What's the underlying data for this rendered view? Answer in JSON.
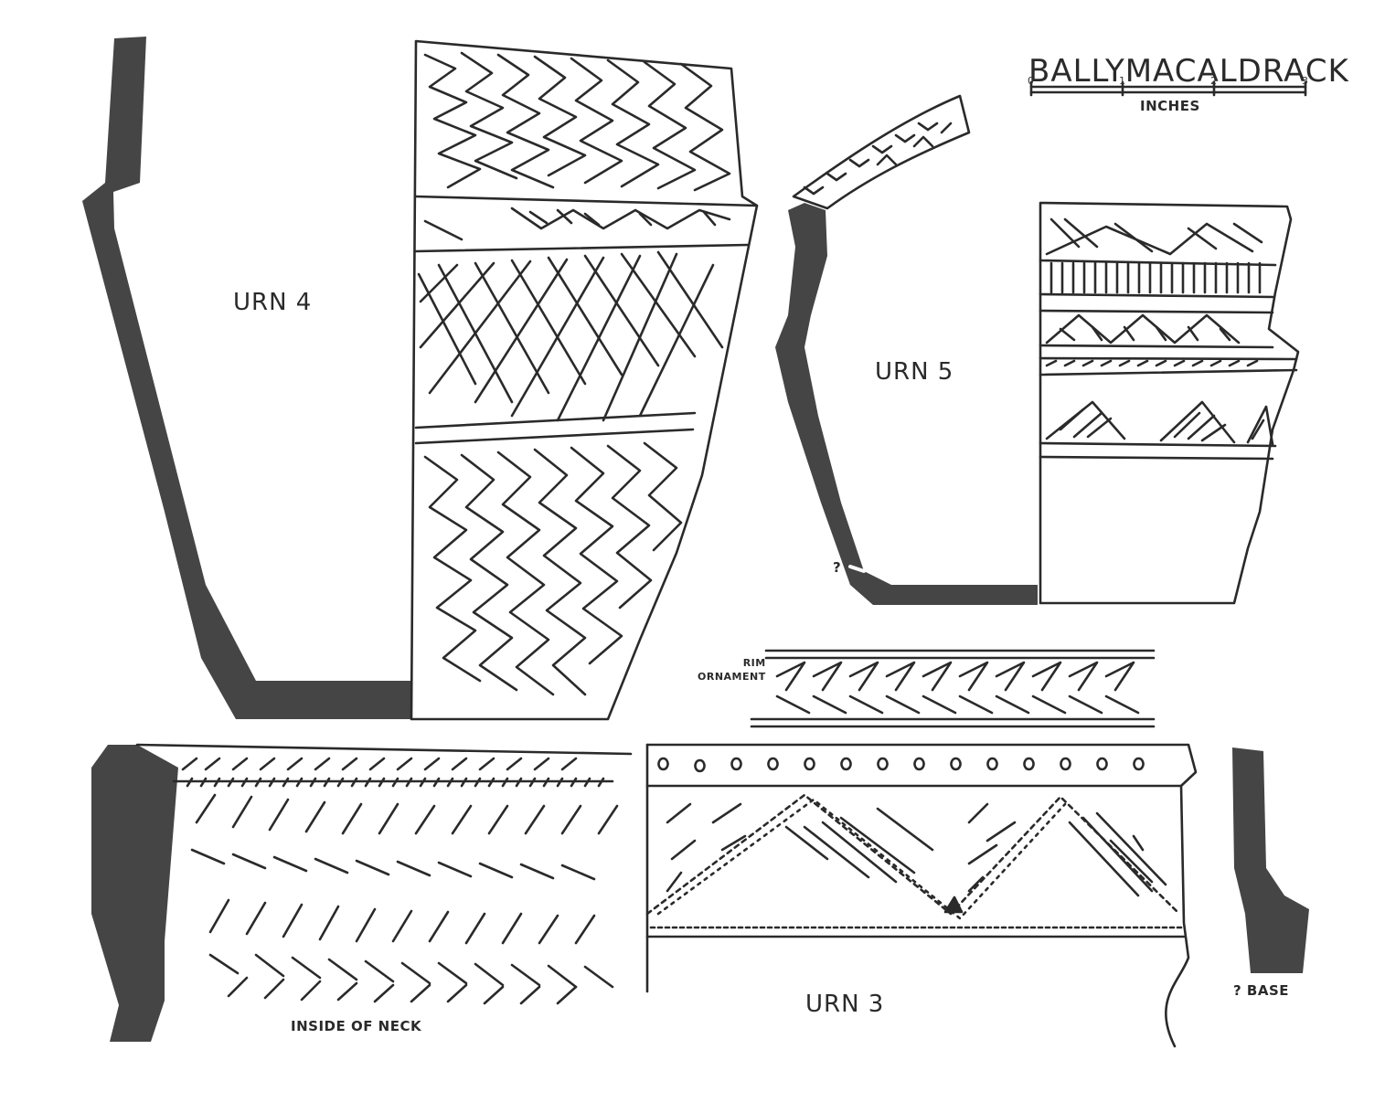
{
  "title": "BALLYMACALDRACK",
  "scale": {
    "ticks": [
      "0",
      "1",
      "2",
      "3"
    ],
    "unit": "INCHES"
  },
  "labels": {
    "urn4": "URN 4",
    "urn5": "URN 5",
    "urn3": "URN 3",
    "inside_neck": "INSIDE OF NECK",
    "base": "? BASE",
    "base_marker": "?",
    "rim_line1": "RIM",
    "rim_line2": "ORNAMENT"
  },
  "colors": {
    "ink": "#2a2a2a",
    "section_fill": "#454545",
    "paper": "#ffffff"
  }
}
